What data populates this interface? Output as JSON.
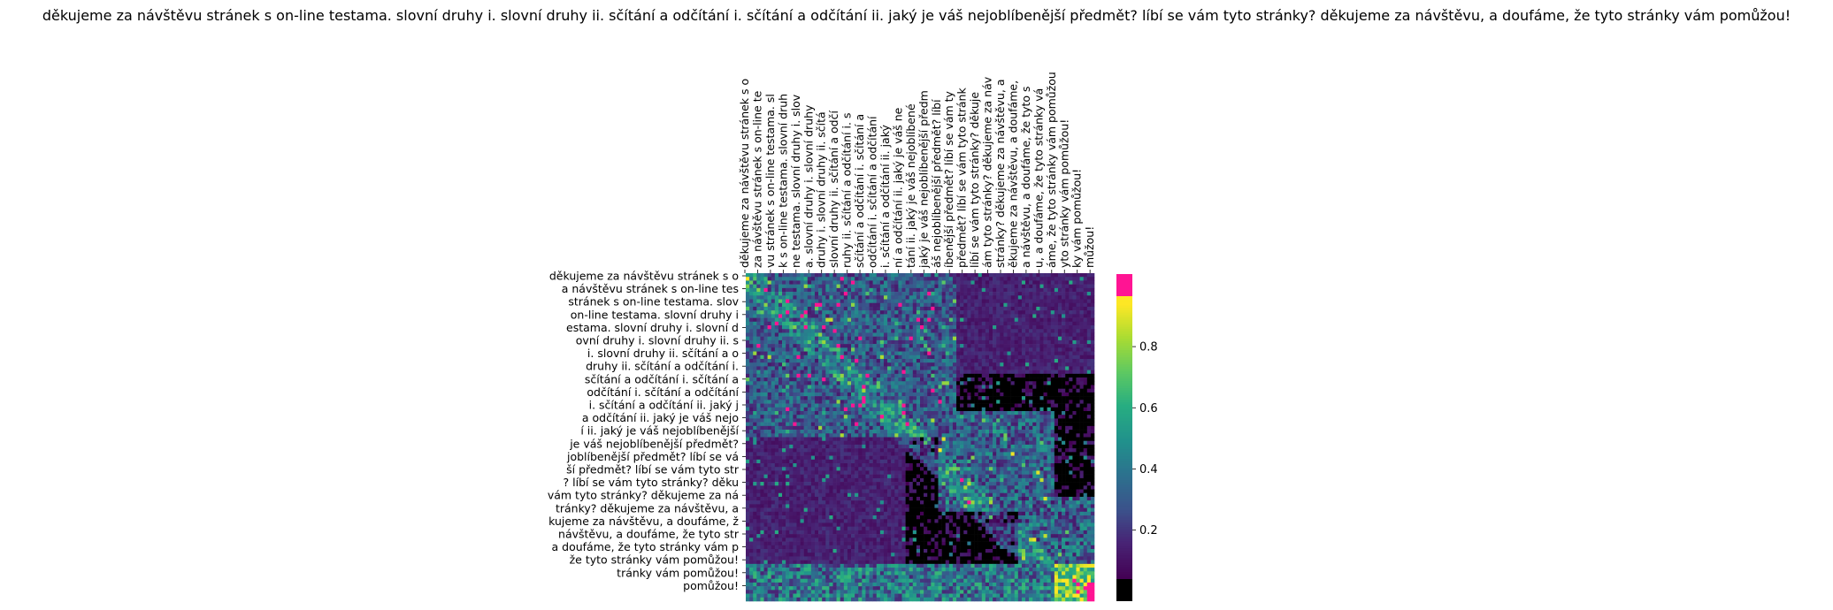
{
  "chart_data": {
    "type": "heatmap",
    "title": "děkujeme za návštěvu stránek s on-line testama. slovní druhy i. slovní druhy ii. sčítání a odčítání i. sčítání a odčítání ii. jaký je váš nejoblíbenější předmět? líbí se vám tyto stránky? děkujeme za návštěvu, a doufáme, že tyto stránky vám pomůžou!",
    "xlabel": "",
    "ylabel": "",
    "x_tick_labels": [
      "děkujeme za návštěvu stránek s o",
      "za návštěvu stránek s on-line te",
      "vu stránek s on-line testama. sl",
      "k s on-line testama. slovní druh",
      "ne testama. slovní druhy i. slov",
      "a. slovní druhy i. slovní druhy",
      "druhy i. slovní druhy ii. sčítá",
      "slovní druhy ii. sčítání a odčí",
      "ruhy ii. sčítání a odčítání i. s",
      "sčítání a odčítání i. sčítání a",
      "odčítání i. sčítání a odčítání",
      "i. sčítání a odčítání ii. jaký",
      "ní a odčítání ii. jaký je váš ne",
      "tání ii. jaký je váš nejoblíbené",
      "jaký je váš nejoblíbenější předm",
      "áš nejoblíbenější předmět? líbí",
      "íbenější předmět? líbí se vám ty",
      "předmět? líbí se vám tyto stránk",
      "líbí se vám tyto stránky? děkuje",
      "ám tyto stránky? děkujeme za náv",
      "stránky? děkujeme za návštěvu, a",
      "ěkujeme za návštěvu, a doufáme,",
      "a návštěvu, a doufáme, že tyto s",
      "u, a doufáme, že tyto stránky vá",
      "áme, že tyto stránky vám pomůžou",
      "yto stránky vám pomůžou!",
      "ky vám pomůžou!",
      "můžou!"
    ],
    "y_tick_labels": [
      "děkujeme za návštěvu stránek s o",
      "a návštěvu stránek s on-line tes",
      "stránek s on-line testama. slov",
      "on-line testama. slovní druhy i",
      "estama. slovní druhy i. slovní d",
      "ovní druhy i. slovní druhy ii. s",
      "i. slovní druhy ii. sčítání a o",
      "druhy ii. sčítání a odčítání i.",
      "sčítání a odčítání i. sčítání a",
      "odčítání i. sčítání a odčítání",
      "i. sčítání a odčítání ii. jaký j",
      "a odčítání ii. jaký je váš nejo",
      "í ii. jaký je váš nejoblíbenější",
      "je váš nejoblíbenější předmět?",
      "joblíbenější předmět? líbí se vá",
      "ší předmět? líbí se vám tyto str",
      "? líbí se vám tyto stránky? děku",
      "vám tyto stránky? děkujeme za ná",
      "tránky? děkujeme za návštěvu, a",
      "kujeme za návštěvu, a doufáme, ž",
      "návštěvu, a doufáme, že tyto str",
      "a doufáme, že tyto stránky vám p",
      "že tyto stránky vám pomůžou!",
      "tránky vám pomůžou!",
      "pomůžou!"
    ],
    "colorbar": {
      "ticks": [
        0.2,
        0.4,
        0.6,
        0.8
      ],
      "tick_labels": [
        "0.2",
        "0.4",
        "0.6",
        "0.8"
      ],
      "range": [
        0.0,
        1.0
      ],
      "colormap": "viridis",
      "over_color": "#ff1493",
      "under_color": "#000000"
    },
    "grid": false,
    "legend": "colorbar-right",
    "x_tick_position": "top"
  }
}
